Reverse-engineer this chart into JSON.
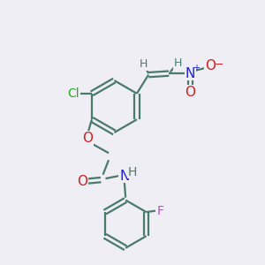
{
  "background_color": "#eeeef4",
  "bond_color": "#4a7a6a",
  "atom_colors": {
    "H": "#4a7a6a",
    "O": "#cc2222",
    "N_blue": "#2222cc",
    "Cl": "#22aa22",
    "F": "#cc44cc",
    "N_amide": "#2222cc"
  },
  "font_size": 10,
  "lw": 1.6
}
